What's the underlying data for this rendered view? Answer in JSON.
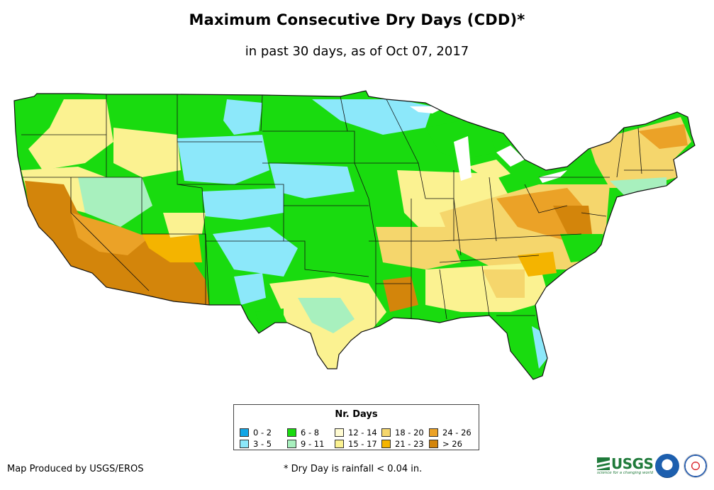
{
  "title": "Maximum Consecutive Dry Days (CDD)*",
  "subtitle": "in past 30 days, as of Oct 07, 2017",
  "legend": {
    "title": "Nr. Days",
    "items": [
      {
        "label": "0 - 2",
        "color": "#12a6e6"
      },
      {
        "label": "3 - 5",
        "color": "#8ce8fa"
      },
      {
        "label": "6 - 8",
        "color": "#19db0f"
      },
      {
        "label": "9 - 11",
        "color": "#a8f0be"
      },
      {
        "label": "12 - 14",
        "color": "#fffbd1"
      },
      {
        "label": "15 - 17",
        "color": "#fbf291"
      },
      {
        "label": "18 - 20",
        "color": "#f5d66c"
      },
      {
        "label": "21 - 23",
        "color": "#f4b400"
      },
      {
        "label": "24 - 26",
        "color": "#eba227"
      },
      {
        "label": "> 26",
        "color": "#d3850b"
      }
    ]
  },
  "footer": {
    "produced_by": "Map Produced by USGS/EROS",
    "footnote": "* Dry Day is rainfall < 0.04 in."
  },
  "logos": {
    "usgs_text": "USGS",
    "usgs_tagline": "science for a changing world",
    "noaa": "noaa-seal",
    "nws": "national-weather-service-seal"
  }
}
